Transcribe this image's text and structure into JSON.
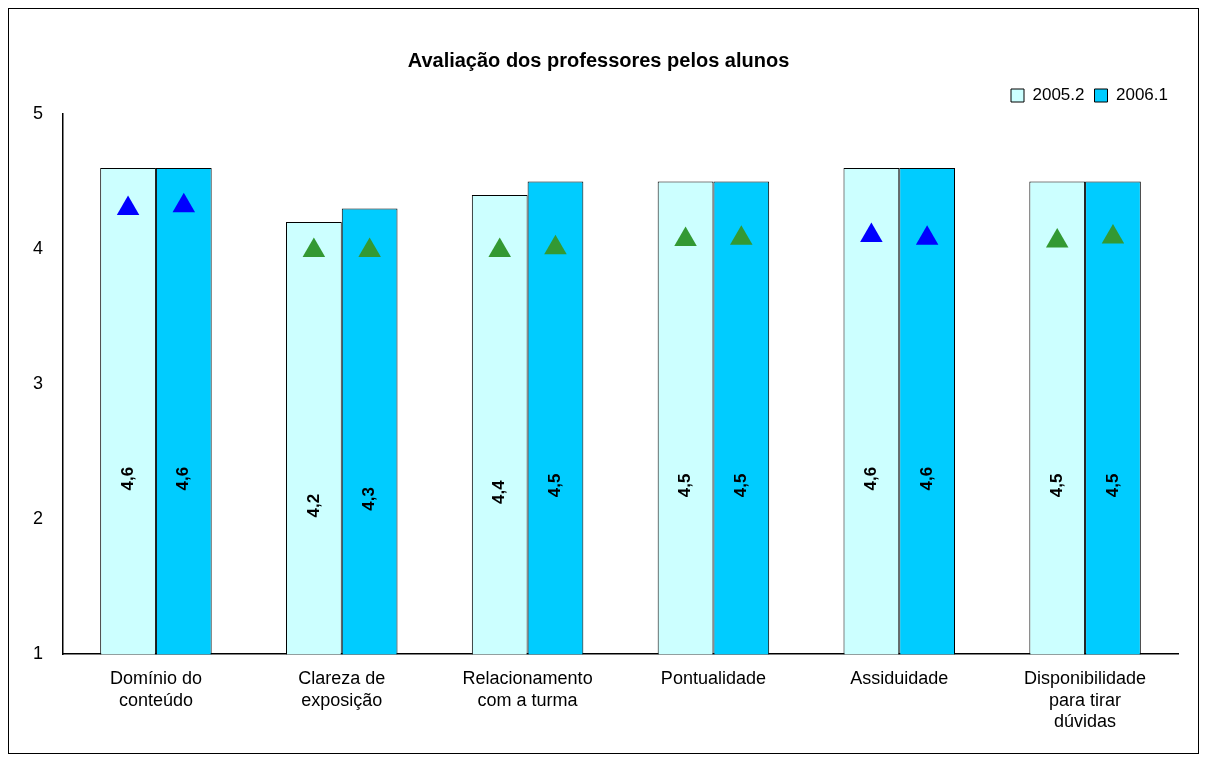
{
  "chart_data": {
    "type": "bar",
    "title": "Avaliação dos professores pelos alunos",
    "categories": [
      "Domínio do conteúdo",
      "Clareza de exposição",
      "Relacionamento com a turma",
      "Pontualidade",
      "Assiduidade",
      "Disponibilidade para tirar dúvidas"
    ],
    "series": [
      {
        "name": "2005.2",
        "color": "#ccffff",
        "values": [
          4.6,
          4.2,
          4.4,
          4.5,
          4.6,
          4.5
        ],
        "value_labels": [
          "4,6",
          "4,2",
          "4,4",
          "4,5",
          "4,6",
          "4,5"
        ]
      },
      {
        "name": "2006.1",
        "color": "#00ccff",
        "values": [
          4.6,
          4.3,
          4.5,
          4.5,
          4.6,
          4.5
        ],
        "value_labels": [
          "4,6",
          "4,3",
          "4,5",
          "4,5",
          "4,6",
          "4,5"
        ]
      },
      {
        "type": "scatter",
        "marker": "triangle",
        "x": [
          "Domínio do conteúdo",
          "Clareza de exposição",
          "Relacionamento com a turma",
          "Pontualidade",
          "Assiduidade",
          "Disponibilidade para tirar dúvidas"
        ],
        "colors": [
          "#0000ff",
          "#339933",
          "#339933",
          "#339933",
          "#0000ff",
          "#339933"
        ],
        "values": [
          4.3,
          3.99,
          3.99,
          4.07,
          4.1,
          4.06
        ]
      },
      {
        "type": "scatter",
        "marker": "triangle",
        "x": [
          "Domínio do conteúdo",
          "Clareza de exposição",
          "Relacionamento com a turma",
          "Pontualidade",
          "Assiduidade",
          "Disponibilidade para tirar dúvidas"
        ],
        "colors": [
          "#0000ff",
          "#339933",
          "#339933",
          "#339933",
          "#0000ff",
          "#339933"
        ],
        "values": [
          4.32,
          3.99,
          4.01,
          4.08,
          4.08,
          4.09
        ]
      }
    ],
    "ylim": [
      1,
      5
    ],
    "yticks": [
      1,
      2,
      3,
      4,
      5
    ],
    "grid": false,
    "legend": "top right"
  }
}
